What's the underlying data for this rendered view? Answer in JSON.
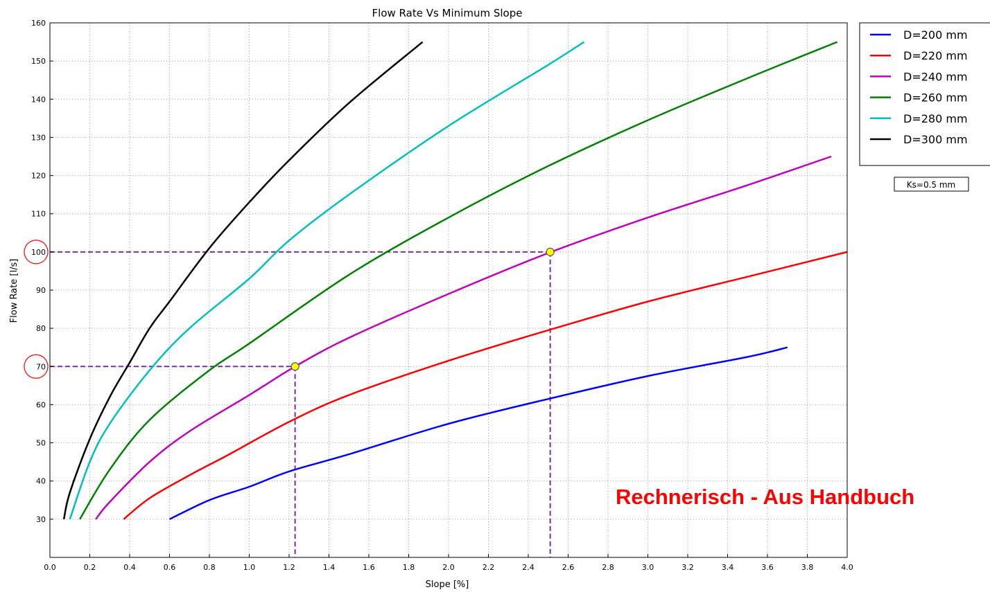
{
  "chart_data": {
    "type": "line",
    "title": "Flow Rate Vs Minimum Slope",
    "xlabel": "Slope [%]",
    "ylabel": "Flow Rate [l/s]",
    "xlim": [
      0.0,
      4.0
    ],
    "ylim": [
      20,
      160
    ],
    "xticks": [
      0.0,
      0.2,
      0.4,
      0.6,
      0.8,
      1.0,
      1.2,
      1.4,
      1.6,
      1.8,
      2.0,
      2.2,
      2.4,
      2.6,
      2.8,
      3.0,
      3.2,
      3.4,
      3.6,
      3.8,
      4.0
    ],
    "xtick_labels": [
      "0.0",
      "0.2",
      "0.4",
      "0.6",
      "0.8",
      "1.0",
      "1.2",
      "1.4",
      "1.6",
      "1.8",
      "2.0",
      "2.2",
      "2.4",
      "2.6",
      "2.8",
      "3.0",
      "3.2",
      "3.4",
      "3.6",
      "3.8",
      "4.0"
    ],
    "yticks": [
      30,
      40,
      50,
      60,
      70,
      80,
      90,
      100,
      110,
      120,
      130,
      140,
      150,
      160
    ],
    "ytick_labels": [
      "30",
      "40",
      "50",
      "60",
      "70",
      "80",
      "90",
      "100",
      "110",
      "120",
      "130",
      "140",
      "150",
      "160"
    ],
    "grid": true,
    "legend_position": "outside-top-right",
    "series": [
      {
        "name": "D=200 mm",
        "color": "#0000ff",
        "x": [
          0.6,
          0.8,
          1.0,
          1.2,
          1.5,
          2.0,
          2.5,
          3.0,
          3.5,
          3.7
        ],
        "y": [
          30,
          35,
          38.5,
          42.5,
          47,
          55,
          61.5,
          67.5,
          72.5,
          75
        ]
      },
      {
        "name": "D=220 mm",
        "color": "#ff0000",
        "x": [
          0.37,
          0.5,
          0.7,
          0.9,
          1.2,
          1.5,
          2.0,
          2.5,
          3.0,
          3.5,
          4.0
        ],
        "y": [
          30,
          35.5,
          41.5,
          47,
          55.5,
          62.5,
          71.5,
          79.5,
          87,
          93.5,
          100
        ]
      },
      {
        "name": "D=240 mm",
        "color": "#bf00bf",
        "x": [
          0.23,
          0.3,
          0.5,
          0.7,
          1.0,
          1.23,
          1.5,
          2.0,
          2.5,
          3.0,
          3.5,
          3.92
        ],
        "y": [
          30,
          34.5,
          45,
          53,
          62.5,
          70,
          77.5,
          89,
          99.7,
          109,
          117.5,
          125
        ]
      },
      {
        "name": "D=260 mm",
        "color": "#008000",
        "x": [
          0.15,
          0.3,
          0.5,
          0.8,
          1.0,
          1.5,
          2.0,
          2.5,
          3.0,
          3.5,
          3.95
        ],
        "y": [
          30,
          43,
          56,
          69,
          76,
          94,
          109,
          122.5,
          134.5,
          145.5,
          155
        ]
      },
      {
        "name": "D=280 mm",
        "color": "#00bfbf",
        "x": [
          0.1,
          0.2,
          0.3,
          0.5,
          0.7,
          1.0,
          1.2,
          1.5,
          2.0,
          2.5,
          2.68
        ],
        "y": [
          30,
          45,
          55,
          69,
          80,
          93,
          103,
          115,
          133,
          149,
          155
        ]
      },
      {
        "name": "D=300 mm",
        "color": "#000000",
        "x": [
          0.07,
          0.1,
          0.2,
          0.3,
          0.4,
          0.5,
          0.6,
          0.8,
          1.0,
          1.2,
          1.5,
          1.87
        ],
        "y": [
          30,
          37,
          51,
          62,
          71,
          80,
          87,
          101,
          113,
          124,
          139,
          155
        ]
      }
    ],
    "reference_lines": [
      {
        "name": "ref-100",
        "color": "#7030a0",
        "x": 2.51,
        "y": 100
      },
      {
        "name": "ref-70",
        "color": "#7030a0",
        "x": 1.23,
        "y": 70
      }
    ],
    "marked_points": [
      {
        "x": 1.23,
        "y": 70
      },
      {
        "x": 2.51,
        "y": 100
      }
    ],
    "circled_ticks": [
      100,
      70
    ],
    "annotations": {
      "ks": "Ks=0.5 mm",
      "main": "Rechnerisch - Aus Handbuch",
      "main_color": "#ff0000"
    }
  }
}
